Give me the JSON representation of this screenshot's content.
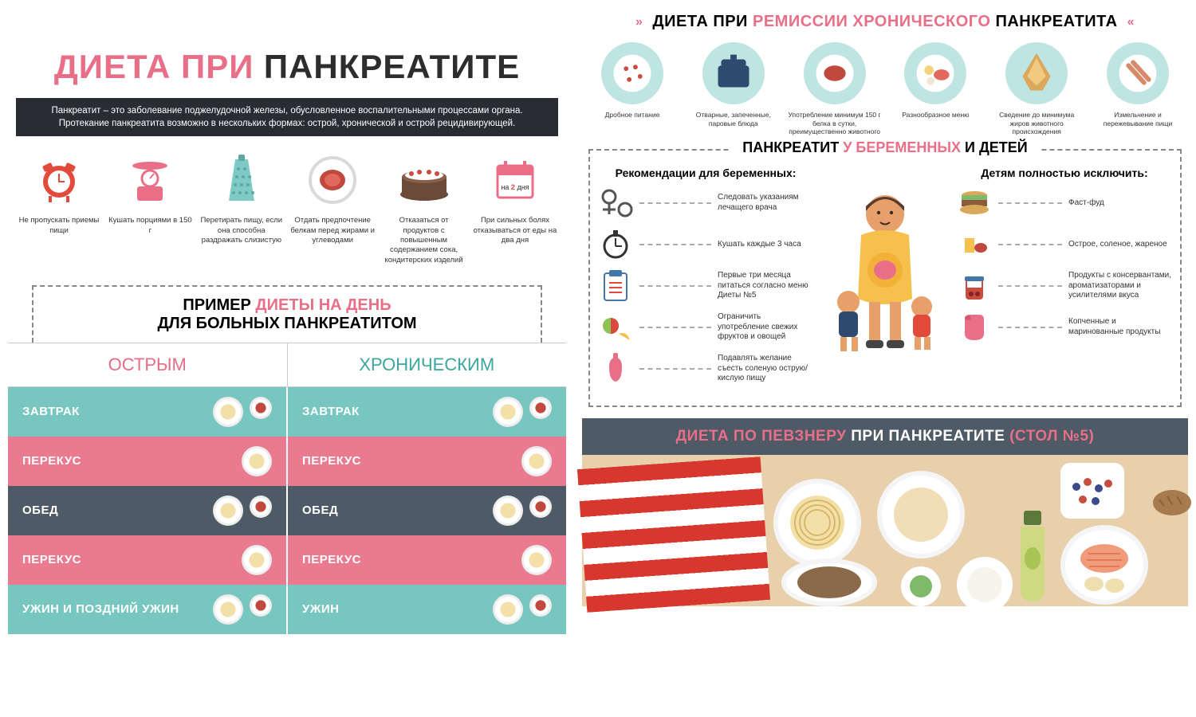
{
  "colors": {
    "accent_pink": "#e86f87",
    "dark_text": "#2d2d2d",
    "subtitle_bg": "#2a2c33",
    "teal": "#74c5bf",
    "row_teal": "#77c6bf",
    "row_pink": "#ea7a8f",
    "row_slate": "#4e5a66",
    "col_pink_head": "#e66d85",
    "col_teal_head": "#3aa79e",
    "rem_circle": "#bfe5e3",
    "pevzner_bg": "#4e5a66",
    "orange": "#f4a83b",
    "red": "#e24a3b",
    "navy": "#2e4a6e"
  },
  "main_title": {
    "part1": "ДИЕТА ПРИ",
    "part2": "ПАНКРЕАТИТЕ"
  },
  "subtitle": "Панкреатит – это заболевание поджелудочной железы, обусловленное воспалительными процессами органа. Протекание панкреатита возможно в нескольких формах: острой, хронической и острой рецидивирующей.",
  "tips": [
    {
      "label": "Не пропускать приемы пищи",
      "icon": "clock"
    },
    {
      "label": "Кушать порциями в 150 г",
      "icon": "scale"
    },
    {
      "label": "Перетирать пищу, если она способна раздражать слизистую",
      "icon": "grater"
    },
    {
      "label": "Отдать предпочтение белкам перед жирами и углеводами",
      "icon": "meat"
    },
    {
      "label": "Отказаться от продуктов с повышенным содержанием сока, кондитерских изделий",
      "icon": "cake"
    },
    {
      "label": "При сильных болях отказываться от еды на два дня",
      "icon": "calendar",
      "badge": "на 2 дня"
    }
  ],
  "daily_example": {
    "title_l1_a": "ПРИМЕР ",
    "title_l1_b": "ДИЕТЫ НА ДЕНЬ",
    "title_l2": "ДЛЯ БОЛЬНЫХ ПАНКРЕАТИТОМ",
    "col_acute": "ОСТРЫМ",
    "col_chronic": "ХРОНИЧЕСКИМ",
    "rows": [
      {
        "label": "ЗАВТРАК",
        "color": "row_teal"
      },
      {
        "label": "ПЕРЕКУС",
        "color": "row_pink"
      },
      {
        "label": "ОБЕД",
        "color": "row_slate"
      },
      {
        "label": "ПЕРЕКУС",
        "color": "row_pink"
      },
      {
        "label_l": "УЖИН И ПОЗДНИЙ УЖИН",
        "label_r": "УЖИН",
        "color": "row_teal"
      }
    ]
  },
  "remission": {
    "title_a": "ДИЕТА ПРИ ",
    "title_b": "РЕМИССИИ ХРОНИЧЕСКОГО ",
    "title_c": "ПАНКРЕАТИТА",
    "items": [
      {
        "label": "Дробное питание"
      },
      {
        "label": "Отварные, запеченные, паровые блюда"
      },
      {
        "label": "Употребление минимум 150 г белка в сутки, преимущественно животного"
      },
      {
        "label": "Разнообразное меню"
      },
      {
        "label": "Сведение до минимума жиров животного происхождения"
      },
      {
        "label": "Измельчение и пережевывание пищи"
      }
    ]
  },
  "pregnant": {
    "title_a": "ПАНКРЕАТИТ ",
    "title_b": "У БЕРЕМЕННЫХ ",
    "title_c": "И ДЕТЕЙ",
    "left_sub": "Рекомендации для беременных:",
    "right_sub": "Детям полностью исключить:",
    "left_items": [
      "Следовать указаниям лечащего врача",
      "Кушать каждые 3 часа",
      "Первые три месяца питаться согласно меню Диеты №5",
      "Ограничить употребление свежих фруктов и овощей",
      "Подавлять желание съесть соленую острую/кислую пищу"
    ],
    "right_items": [
      "Фаст-фуд",
      "Острое, соленое, жареное",
      "Продукты с консервантами, ароматизаторами и усилителями вкуса",
      "Копченные и маринованные продукты"
    ]
  },
  "pevzner": {
    "a": "ДИЕТА ПО ПЕВЗНЕРУ ",
    "b": "ПРИ ПАНКРЕАТИТЕ ",
    "c": "(СТОЛ №5)"
  }
}
